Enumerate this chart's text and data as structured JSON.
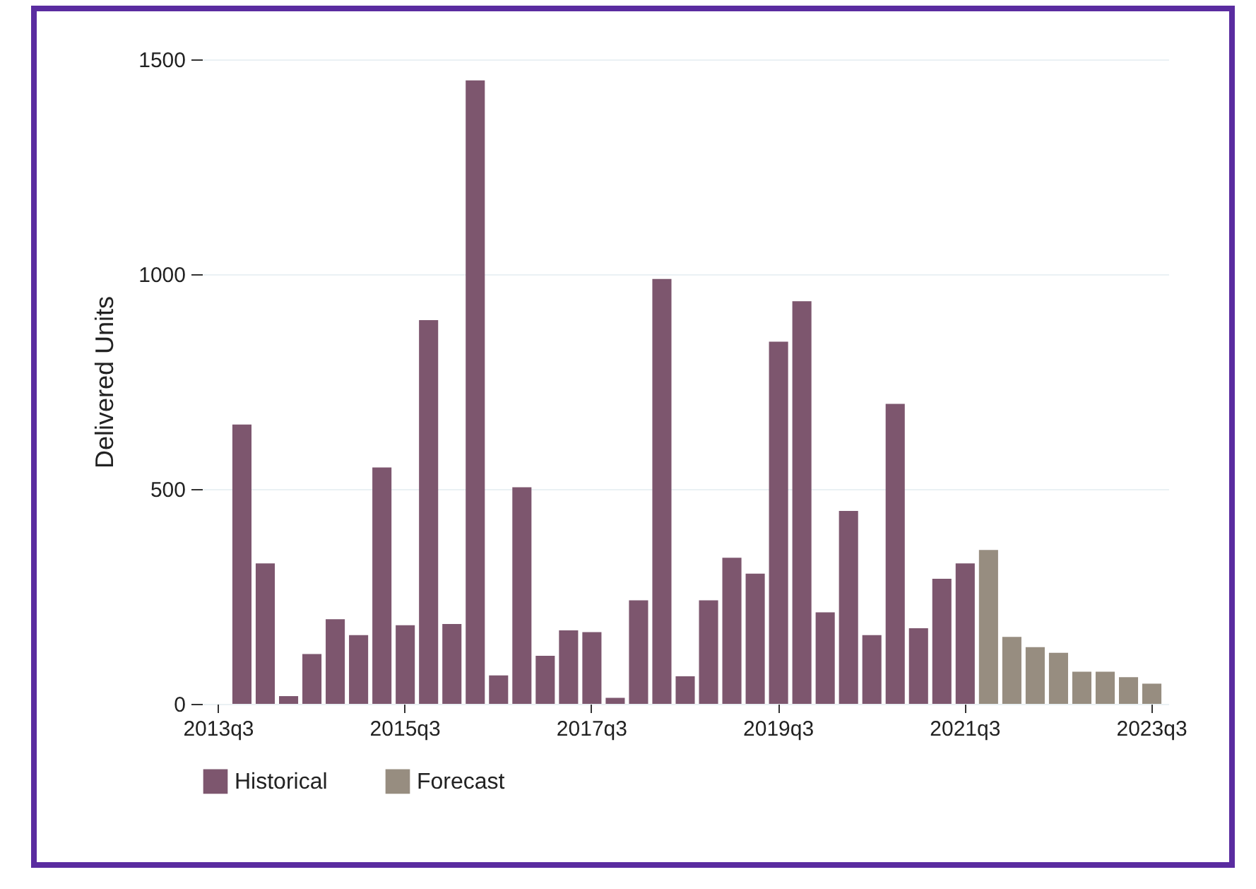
{
  "chart_data": {
    "type": "bar",
    "ylabel": "Delivered Units",
    "categories": [
      "2013q3",
      null,
      null,
      null,
      null,
      null,
      null,
      null,
      "2015q3",
      null,
      null,
      null,
      null,
      null,
      null,
      null,
      "2017q3",
      null,
      null,
      null,
      null,
      null,
      null,
      null,
      "2019q3",
      null,
      null,
      null,
      null,
      null,
      null,
      null,
      "2021q3",
      null,
      null,
      null,
      null,
      null,
      null,
      null,
      "2023q3"
    ],
    "series": [
      {
        "name": "Historical",
        "color": "#7d566e",
        "values": [
          null,
          650,
          327,
          18,
          116,
          197,
          160,
          550,
          183,
          893,
          186,
          1451,
          66,
          504,
          112,
          171,
          167,
          14,
          241,
          989,
          64,
          241,
          340,
          303,
          843,
          937,
          213,
          449,
          160,
          698,
          176,
          291,
          327,
          null,
          null,
          null,
          null,
          null,
          null,
          null,
          null
        ]
      },
      {
        "name": "Forecast",
        "color": "#978d80",
        "values": [
          null,
          null,
          null,
          null,
          null,
          null,
          null,
          null,
          null,
          null,
          null,
          null,
          null,
          null,
          null,
          null,
          null,
          null,
          null,
          null,
          null,
          null,
          null,
          null,
          null,
          null,
          null,
          null,
          null,
          null,
          null,
          null,
          null,
          358,
          156,
          132,
          119,
          75,
          75,
          62,
          47
        ]
      }
    ],
    "ylim": [
      0,
      1500
    ],
    "yticks": [
      0,
      500,
      1000,
      1500
    ],
    "grid": "y",
    "legend": "bottom"
  }
}
